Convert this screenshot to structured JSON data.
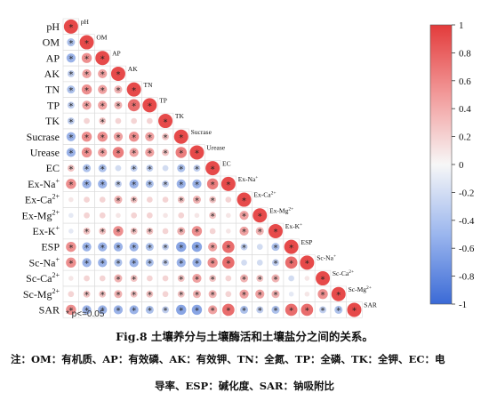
{
  "chart_data": {
    "type": "heatmap",
    "variables": [
      "pH",
      "OM",
      "AP",
      "AK",
      "TN",
      "TP",
      "TK",
      "Sucrase",
      "Urease",
      "EC",
      "Ex-Na+",
      "Ex-Ca2+",
      "Ex-Mg2+",
      "Ex-K+",
      "ESP",
      "Sc-Na+",
      "Sc-Ca2+",
      "Sc-Mg2+",
      "SAR"
    ],
    "row_labels": [
      {
        "base": "pH",
        "sup": ""
      },
      {
        "base": "OM",
        "sup": ""
      },
      {
        "base": "AP",
        "sup": ""
      },
      {
        "base": "AK",
        "sup": ""
      },
      {
        "base": "TN",
        "sup": ""
      },
      {
        "base": "TP",
        "sup": ""
      },
      {
        "base": "TK",
        "sup": ""
      },
      {
        "base": "Sucrase",
        "sup": ""
      },
      {
        "base": "Urease",
        "sup": ""
      },
      {
        "base": "EC",
        "sup": ""
      },
      {
        "base": "Ex-Na",
        "sup": "+"
      },
      {
        "base": "Ex-Ca",
        "sup": "2+"
      },
      {
        "base": "Ex-Mg",
        "sup": "2+"
      },
      {
        "base": "Ex-K",
        "sup": "+"
      },
      {
        "base": "ESP",
        "sup": ""
      },
      {
        "base": "Sc-Na",
        "sup": "+"
      },
      {
        "base": "Sc-Ca",
        "sup": "2+"
      },
      {
        "base": "Sc-Mg",
        "sup": "2+"
      },
      {
        "base": "SAR",
        "sup": ""
      }
    ],
    "matrix": [
      [
        1.0
      ],
      [
        -0.4,
        1.0
      ],
      [
        -0.5,
        0.6,
        1.0
      ],
      [
        -0.3,
        0.5,
        0.5,
        1.0
      ],
      [
        -0.4,
        0.6,
        0.5,
        0.4,
        1.0
      ],
      [
        -0.3,
        0.5,
        0.5,
        0.4,
        0.8,
        1.0
      ],
      [
        -0.3,
        0.2,
        0.3,
        0.2,
        0.2,
        0.2,
        1.0
      ],
      [
        -0.5,
        0.6,
        0.6,
        0.5,
        0.6,
        0.5,
        0.3,
        1.0
      ],
      [
        -0.5,
        0.6,
        0.5,
        0.7,
        0.5,
        0.5,
        0.3,
        0.7,
        1.0
      ],
      [
        0.3,
        -0.4,
        -0.4,
        -0.2,
        -0.3,
        -0.3,
        -0.2,
        -0.4,
        -0.3,
        1.0
      ],
      [
        0.6,
        -0.5,
        -0.5,
        -0.3,
        -0.5,
        -0.4,
        -0.3,
        -0.5,
        -0.5,
        0.7,
        1.0
      ],
      [
        0.1,
        0.2,
        0.2,
        0.4,
        0.3,
        0.2,
        0.2,
        0.3,
        0.4,
        0.3,
        0.2,
        1.0
      ],
      [
        -0.1,
        0.2,
        0.2,
        0.1,
        0.2,
        0.2,
        0.1,
        0.2,
        0.1,
        0.3,
        0.1,
        0.5,
        1.0
      ],
      [
        -0.1,
        0.3,
        0.3,
        0.6,
        0.3,
        0.3,
        0.2,
        0.4,
        0.6,
        0.2,
        0.1,
        0.5,
        0.4,
        1.0
      ],
      [
        0.6,
        -0.5,
        -0.5,
        -0.5,
        -0.5,
        -0.4,
        -0.3,
        -0.6,
        -0.6,
        0.5,
        0.8,
        -0.3,
        -0.2,
        -0.4,
        1.0
      ],
      [
        0.6,
        -0.5,
        -0.5,
        -0.4,
        -0.5,
        -0.4,
        -0.3,
        -0.5,
        -0.5,
        0.6,
        0.8,
        -0.2,
        -0.2,
        -0.3,
        0.8,
        1.0
      ],
      [
        0.1,
        0.2,
        0.2,
        0.4,
        0.3,
        0.2,
        0.2,
        0.3,
        0.5,
        0.3,
        0.2,
        0.4,
        0.3,
        0.4,
        -0.2,
        0.1,
        1.0
      ],
      [
        0.2,
        0.3,
        0.3,
        0.4,
        0.3,
        0.3,
        0.2,
        0.3,
        0.4,
        0.4,
        0.2,
        0.5,
        0.5,
        0.4,
        -0.1,
        0.1,
        0.6,
        1.0
      ],
      [
        0.6,
        -0.5,
        -0.5,
        -0.5,
        -0.5,
        -0.4,
        -0.3,
        -0.6,
        -0.6,
        0.5,
        0.8,
        -0.4,
        -0.3,
        -0.4,
        0.8,
        0.8,
        -0.3,
        -0.4,
        1.0
      ]
    ],
    "significant": [
      [
        true
      ],
      [
        true,
        true
      ],
      [
        true,
        true,
        true
      ],
      [
        true,
        true,
        true,
        true
      ],
      [
        true,
        true,
        true,
        true,
        true
      ],
      [
        true,
        true,
        true,
        true,
        true,
        true
      ],
      [
        true,
        false,
        true,
        false,
        false,
        false,
        true
      ],
      [
        true,
        true,
        true,
        true,
        true,
        true,
        true,
        true
      ],
      [
        true,
        true,
        true,
        true,
        true,
        true,
        true,
        true,
        true
      ],
      [
        true,
        true,
        true,
        false,
        true,
        true,
        false,
        true,
        true,
        true
      ],
      [
        true,
        true,
        true,
        true,
        true,
        true,
        true,
        true,
        true,
        true,
        true
      ],
      [
        false,
        false,
        false,
        true,
        true,
        false,
        false,
        true,
        true,
        true,
        false,
        true
      ],
      [
        false,
        false,
        false,
        false,
        false,
        false,
        false,
        false,
        false,
        true,
        false,
        true,
        true
      ],
      [
        false,
        true,
        true,
        true,
        true,
        true,
        false,
        true,
        true,
        false,
        false,
        true,
        true,
        true
      ],
      [
        true,
        true,
        true,
        true,
        true,
        true,
        true,
        true,
        true,
        true,
        true,
        true,
        false,
        true,
        true
      ],
      [
        true,
        true,
        true,
        true,
        true,
        true,
        true,
        true,
        true,
        true,
        true,
        false,
        false,
        true,
        true,
        true
      ],
      [
        false,
        false,
        false,
        true,
        true,
        false,
        false,
        true,
        true,
        true,
        false,
        true,
        true,
        true,
        false,
        false,
        true
      ],
      [
        false,
        true,
        true,
        true,
        true,
        true,
        false,
        true,
        true,
        true,
        false,
        true,
        true,
        true,
        false,
        false,
        true,
        true
      ],
      [
        true,
        true,
        true,
        true,
        true,
        true,
        true,
        true,
        true,
        true,
        true,
        true,
        true,
        true,
        true,
        true,
        true,
        true,
        true
      ]
    ],
    "colorbar_range": [
      -1,
      1
    ],
    "colorbar_ticks": [
      "1",
      "0.8",
      "0.6",
      "0.4",
      "0.2",
      "0",
      "-0.2",
      "-0.4",
      "-0.6",
      "-0.8",
      "-1"
    ],
    "colors": {
      "positive": "#e64a4a",
      "neutral": "#f7f7f7",
      "negative": "#3f6fd8"
    },
    "significance_note": "* p<=0.05"
  },
  "caption": {
    "title": "Fig.8  土壤养分与土壤酶活和土壤盐分之间的关系。",
    "note_line1": "注：OM：有机质、AP：有效磷、AK：有效钾、TN：全氮、TP：全磷、TK：全钾、EC：电",
    "note_line2": "导率、ESP：碱化度、SAR：钠吸附比"
  }
}
